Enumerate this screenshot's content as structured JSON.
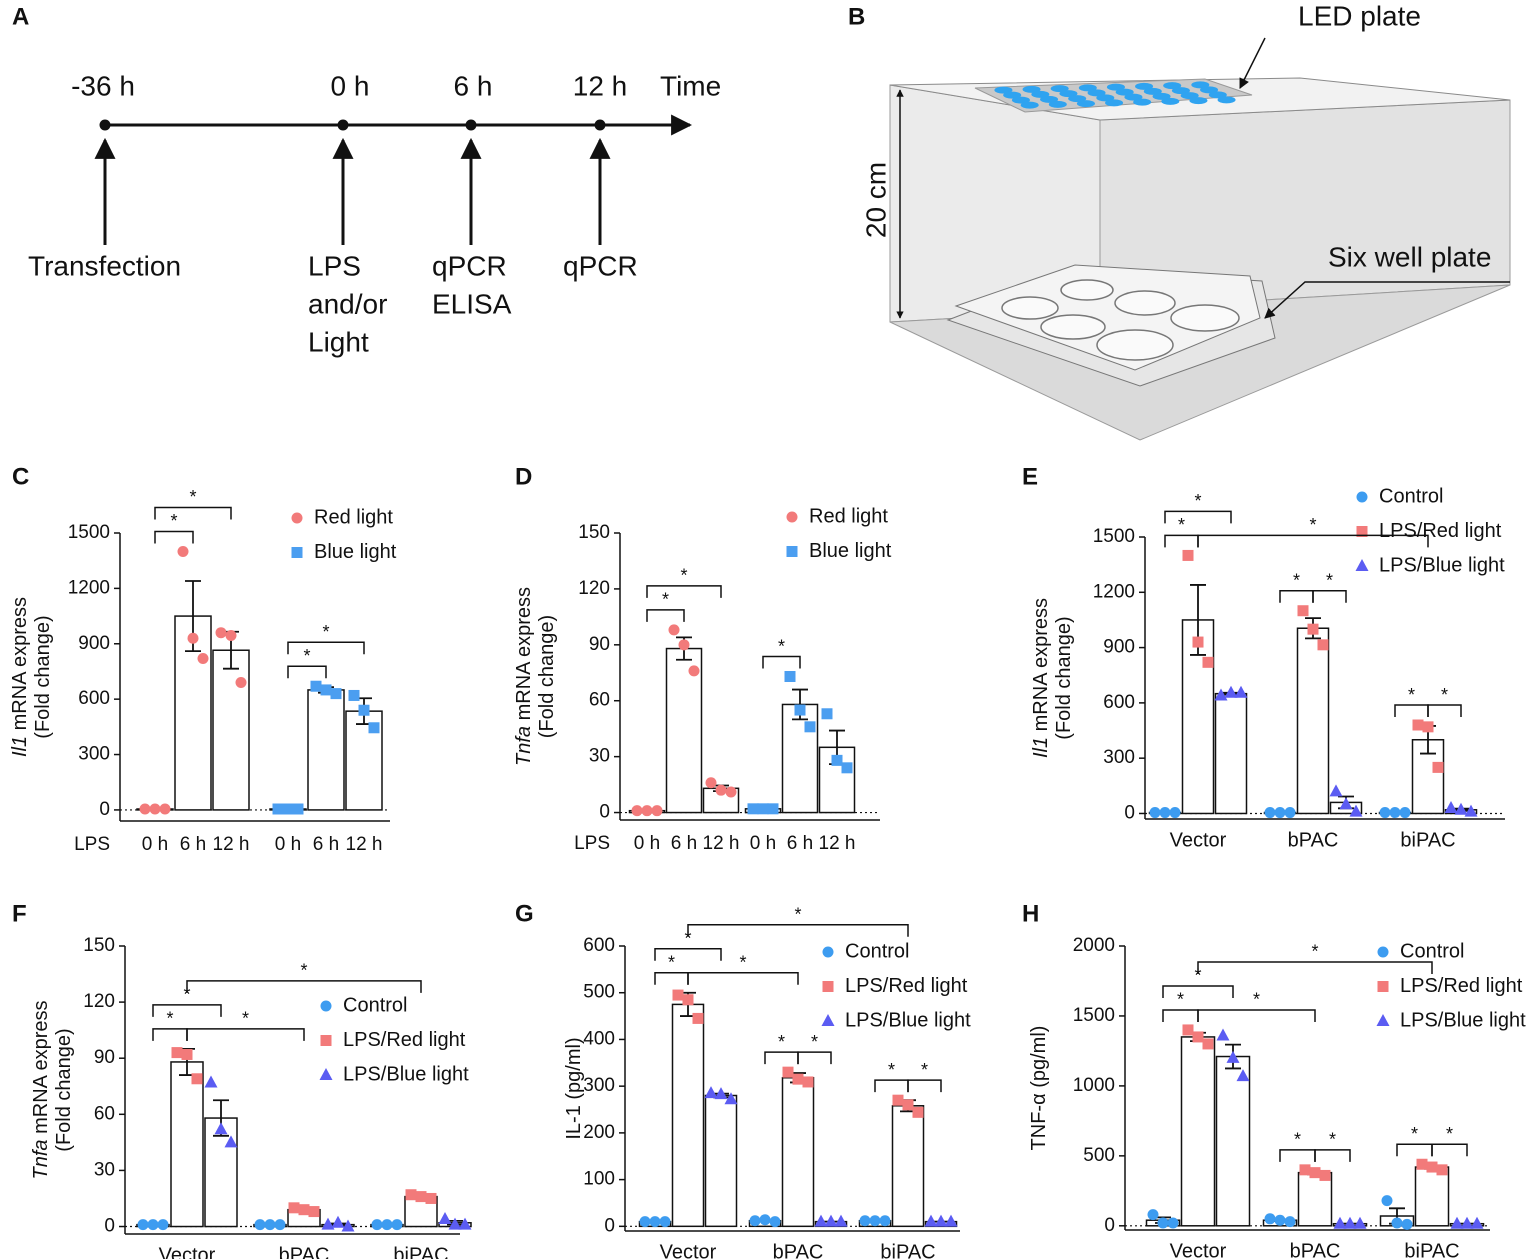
{
  "timeline": {
    "panel": "A",
    "axis_label": "Time",
    "events": [
      {
        "time": "-36 h",
        "label": [
          "Transfection"
        ]
      },
      {
        "time": "0 h",
        "label": [
          "LPS",
          "and/or",
          "Light"
        ]
      },
      {
        "time": "6 h",
        "label": [
          "qPCR",
          "ELISA"
        ]
      },
      {
        "time": "12 h",
        "label": [
          "qPCR"
        ]
      }
    ]
  },
  "setup": {
    "panel": "B",
    "top_label": "LED plate",
    "height_label": "20 cm",
    "bottom_label": "Six well plate"
  },
  "chart_data": [
    {
      "panel": "C",
      "type": "bar",
      "group_by": "series",
      "xlabel": "LPS",
      "ylabel": [
        [
          {
            "text": "Il1",
            "italic": true
          },
          {
            "text": " mRNA express"
          }
        ],
        [
          {
            "text": "(Fold change)"
          }
        ]
      ],
      "categories": [
        "0 h",
        "6 h",
        "12 h"
      ],
      "series": [
        {
          "name": "Red light",
          "color": "#f27a7a",
          "marker": "circle",
          "values": [
            5,
            1050,
            865
          ],
          "errors": [
            0,
            190,
            100
          ],
          "points": [
            [
              5,
              5,
              5
            ],
            [
              1400,
              930,
              820
            ],
            [
              960,
              945,
              690
            ]
          ]
        },
        {
          "name": "Blue light",
          "color": "#4b9ef0",
          "marker": "square",
          "values": [
            5,
            650,
            535
          ],
          "errors": [
            0,
            15,
            70
          ],
          "points": [
            [
              5,
              5,
              5
            ],
            [
              670,
              650,
              630
            ],
            [
              620,
              540,
              445
            ]
          ]
        }
      ],
      "ylim": [
        -60,
        1500
      ],
      "yticks": [
        0,
        300,
        600,
        900,
        1200,
        1500
      ],
      "legend": "upper right",
      "significance": [
        {
          "from": [
            0,
            0
          ],
          "to": [
            0,
            1
          ],
          "label": "*"
        },
        {
          "from": [
            0,
            0
          ],
          "to": [
            0,
            2
          ],
          "label": "*"
        },
        {
          "from": [
            1,
            0
          ],
          "to": [
            1,
            1
          ],
          "label": "*"
        },
        {
          "from": [
            1,
            0
          ],
          "to": [
            1,
            2
          ],
          "label": "*"
        }
      ]
    },
    {
      "panel": "D",
      "type": "bar",
      "group_by": "series",
      "xlabel": "LPS",
      "ylabel": [
        [
          {
            "text": "Tnfa",
            "italic": true
          },
          {
            "text": " mRNA express"
          }
        ],
        [
          {
            "text": "(Fold change)"
          }
        ]
      ],
      "categories": [
        "0 h",
        "6 h",
        "12 h"
      ],
      "series": [
        {
          "name": "Red light",
          "color": "#f27a7a",
          "marker": "circle",
          "values": [
            1,
            88,
            13
          ],
          "errors": [
            0,
            6,
            1.5
          ],
          "points": [
            [
              1,
              1,
              1
            ],
            [
              98,
              90,
              76
            ],
            [
              16,
              12,
              11
            ]
          ]
        },
        {
          "name": "Blue light",
          "color": "#4b9ef0",
          "marker": "square",
          "values": [
            2,
            58,
            35
          ],
          "errors": [
            0,
            8,
            9
          ],
          "points": [
            [
              2,
              2,
              2
            ],
            [
              73,
              55,
              46
            ],
            [
              53,
              28,
              24
            ]
          ]
        }
      ],
      "ylim": [
        -4,
        150
      ],
      "yticks": [
        0,
        30,
        60,
        90,
        120,
        150
      ],
      "legend": "upper right",
      "significance": [
        {
          "from": [
            0,
            0
          ],
          "to": [
            0,
            1
          ],
          "label": "*"
        },
        {
          "from": [
            0,
            0
          ],
          "to": [
            0,
            2
          ],
          "label": "*"
        },
        {
          "from": [
            1,
            0
          ],
          "to": [
            1,
            1
          ],
          "label": "*"
        }
      ]
    },
    {
      "panel": "E",
      "type": "bar",
      "group_by": "category",
      "ylabel": [
        [
          {
            "text": "Il1",
            "italic": true
          },
          {
            "text": " mRNA express"
          }
        ],
        [
          {
            "text": "(Fold change)"
          }
        ]
      ],
      "categories": [
        "Vector",
        "bPAC",
        "biPAC"
      ],
      "series": [
        {
          "name": "Control",
          "color": "#3d9cf0",
          "marker": "circle",
          "values": [
            5,
            5,
            5
          ],
          "errors": [
            0,
            0,
            0
          ],
          "points": [
            [
              5,
              5,
              5
            ],
            [
              5,
              5,
              5
            ],
            [
              5,
              5,
              5
            ]
          ]
        },
        {
          "name": "LPS/Red light",
          "color": "#f27a7a",
          "marker": "square",
          "values": [
            1050,
            1005,
            400
          ],
          "errors": [
            190,
            55,
            75
          ],
          "points": [
            [
              1400,
              930,
              820
            ],
            [
              1100,
              1000,
              915
            ],
            [
              480,
              470,
              250
            ]
          ]
        },
        {
          "name": "LPS/Blue light",
          "color": "#5b5cf2",
          "marker": "triangle",
          "values": [
            650,
            60,
            20
          ],
          "errors": [
            5,
            32,
            6
          ],
          "points": [
            [
              640,
              655,
              655
            ],
            [
              120,
              50,
              10
            ],
            [
              30,
              20,
              10
            ]
          ]
        }
      ],
      "ylim": [
        -30,
        1500
      ],
      "yticks": [
        0,
        300,
        600,
        900,
        1200,
        1500
      ],
      "legend": "upper right",
      "significance": [
        {
          "from": [
            0,
            0
          ],
          "to": [
            1,
            0
          ],
          "label": "*"
        },
        {
          "from": [
            0,
            0
          ],
          "to": [
            2,
            0
          ],
          "label": "*"
        },
        {
          "from": [
            0,
            1
          ],
          "to": [
            1,
            1
          ],
          "label": "*"
        },
        {
          "from": [
            1,
            1
          ],
          "to": [
            2,
            1
          ],
          "label": "*"
        },
        {
          "from": [
            0,
            2
          ],
          "to": [
            1,
            2
          ],
          "label": "*"
        },
        {
          "from": [
            1,
            2
          ],
          "to": [
            2,
            2
          ],
          "label": "*"
        },
        {
          "from": [
            1,
            0
          ],
          "to": [
            1,
            2
          ],
          "label": "*"
        }
      ]
    },
    {
      "panel": "F",
      "type": "bar",
      "group_by": "category",
      "ylabel": [
        [
          {
            "text": "Tnfa",
            "italic": true
          },
          {
            "text": " mRNA express"
          }
        ],
        [
          {
            "text": "(Fold change)"
          }
        ]
      ],
      "categories": [
        "Vector",
        "bPAC",
        "biPAC"
      ],
      "series": [
        {
          "name": "Control",
          "color": "#3d9cf0",
          "marker": "circle",
          "values": [
            1,
            1,
            1
          ],
          "errors": [
            0,
            0,
            0
          ],
          "points": [
            [
              1,
              1,
              1
            ],
            [
              1,
              1,
              1
            ],
            [
              1,
              1,
              1
            ]
          ]
        },
        {
          "name": "LPS/Red light",
          "color": "#f27a7a",
          "marker": "square",
          "values": [
            88,
            9,
            16
          ],
          "errors": [
            7,
            0.6,
            0.6
          ],
          "points": [
            [
              93,
              92,
              79
            ],
            [
              10,
              9,
              8
            ],
            [
              17,
              16,
              15
            ]
          ]
        },
        {
          "name": "LPS/Blue light",
          "color": "#5b5cf2",
          "marker": "triangle",
          "values": [
            58,
            1,
            2
          ],
          "errors": [
            9.5,
            0.6,
            1
          ],
          "points": [
            [
              77,
              52,
              45
            ],
            [
              1,
              2,
              0
            ],
            [
              4,
              1,
              1
            ]
          ]
        }
      ],
      "ylim": [
        -4,
        150
      ],
      "yticks": [
        0,
        30,
        60,
        90,
        120,
        150
      ],
      "legend": "upper right",
      "significance": [
        {
          "from": [
            0,
            0
          ],
          "to": [
            1,
            0
          ],
          "label": "*"
        },
        {
          "from": [
            0,
            0
          ],
          "to": [
            2,
            0
          ],
          "label": "*"
        },
        {
          "from": [
            1,
            0
          ],
          "to": [
            1,
            1
          ],
          "label": "*"
        },
        {
          "from": [
            1,
            0
          ],
          "to": [
            1,
            2
          ],
          "label": "*"
        }
      ]
    },
    {
      "panel": "G",
      "type": "bar",
      "group_by": "category",
      "ylabel": [
        [
          {
            "text": "IL-1 (pg/ml)"
          }
        ]
      ],
      "categories": [
        "Vector",
        "bPAC",
        "biPAC"
      ],
      "series": [
        {
          "name": "Control",
          "color": "#3d9cf0",
          "marker": "circle",
          "values": [
            10,
            12,
            12
          ],
          "errors": [
            0,
            1,
            0
          ],
          "points": [
            [
              10,
              10,
              10
            ],
            [
              12,
              14,
              10
            ],
            [
              12,
              12,
              12
            ]
          ]
        },
        {
          "name": "LPS/Red light",
          "color": "#f27a7a",
          "marker": "square",
          "values": [
            475,
            318,
            258
          ],
          "errors": [
            25,
            10,
            12
          ],
          "points": [
            [
              495,
              485,
              445
            ],
            [
              330,
              315,
              309
            ],
            [
              270,
              260,
              244
            ]
          ]
        },
        {
          "name": "LPS/Blue light",
          "color": "#5b5cf2",
          "marker": "triangle",
          "values": [
            280,
            10,
            10
          ],
          "errors": [
            4,
            0,
            0
          ],
          "points": [
            [
              285,
              283,
              272
            ],
            [
              10,
              10,
              10
            ],
            [
              10,
              10,
              10
            ]
          ]
        }
      ],
      "ylim": [
        -10,
        600
      ],
      "yticks": [
        0,
        100,
        200,
        300,
        400,
        500,
        600
      ],
      "legend": "upper right",
      "significance": [
        {
          "from": [
            0,
            0
          ],
          "to": [
            1,
            0
          ],
          "label": "*"
        },
        {
          "from": [
            0,
            0
          ],
          "to": [
            2,
            0
          ],
          "label": "*"
        },
        {
          "from": [
            0,
            1
          ],
          "to": [
            1,
            1
          ],
          "label": "*"
        },
        {
          "from": [
            1,
            1
          ],
          "to": [
            2,
            1
          ],
          "label": "*"
        },
        {
          "from": [
            0,
            2
          ],
          "to": [
            1,
            2
          ],
          "label": "*"
        },
        {
          "from": [
            1,
            2
          ],
          "to": [
            2,
            2
          ],
          "label": "*"
        },
        {
          "from": [
            1,
            0
          ],
          "to": [
            1,
            1
          ],
          "label": "*"
        },
        {
          "from": [
            1,
            0
          ],
          "to": [
            1,
            2
          ],
          "label": "*"
        }
      ]
    },
    {
      "panel": "H",
      "type": "bar",
      "group_by": "category",
      "ylabel": [
        [
          {
            "text": "TNF-α (pg/ml)"
          }
        ]
      ],
      "categories": [
        "Vector",
        "bPAC",
        "biPAC"
      ],
      "series": [
        {
          "name": "Control",
          "color": "#3d9cf0",
          "marker": "circle",
          "values": [
            40,
            40,
            70
          ],
          "errors": [
            20,
            6,
            55
          ],
          "points": [
            [
              80,
              20,
              20
            ],
            [
              50,
              40,
              30
            ],
            [
              180,
              20,
              10
            ]
          ]
        },
        {
          "name": "LPS/Red light",
          "color": "#f27a7a",
          "marker": "square",
          "values": [
            1350,
            380,
            420
          ],
          "errors": [
            30,
            12,
            12
          ],
          "points": [
            [
              1400,
              1350,
              1300
            ],
            [
              400,
              380,
              360
            ],
            [
              440,
              420,
              400
            ]
          ]
        },
        {
          "name": "LPS/Blue light",
          "color": "#5b5cf2",
          "marker": "triangle",
          "values": [
            1210,
            15,
            15
          ],
          "errors": [
            85,
            0,
            0
          ],
          "points": [
            [
              1360,
              1200,
              1070
            ],
            [
              15,
              15,
              15
            ],
            [
              15,
              15,
              15
            ]
          ]
        }
      ],
      "ylim": [
        -30,
        2000
      ],
      "yticks": [
        0,
        500,
        1000,
        1500,
        2000
      ],
      "legend": "upper right",
      "significance": [
        {
          "from": [
            0,
            0
          ],
          "to": [
            1,
            0
          ],
          "label": "*"
        },
        {
          "from": [
            0,
            0
          ],
          "to": [
            2,
            0
          ],
          "label": "*"
        },
        {
          "from": [
            0,
            1
          ],
          "to": [
            1,
            1
          ],
          "label": "*"
        },
        {
          "from": [
            1,
            1
          ],
          "to": [
            2,
            1
          ],
          "label": "*"
        },
        {
          "from": [
            0,
            2
          ],
          "to": [
            1,
            2
          ],
          "label": "*"
        },
        {
          "from": [
            1,
            2
          ],
          "to": [
            2,
            2
          ],
          "label": "*"
        },
        {
          "from": [
            1,
            0
          ],
          "to": [
            1,
            1
          ],
          "label": "*"
        },
        {
          "from": [
            1,
            0
          ],
          "to": [
            1,
            2
          ],
          "label": "*"
        }
      ]
    }
  ]
}
